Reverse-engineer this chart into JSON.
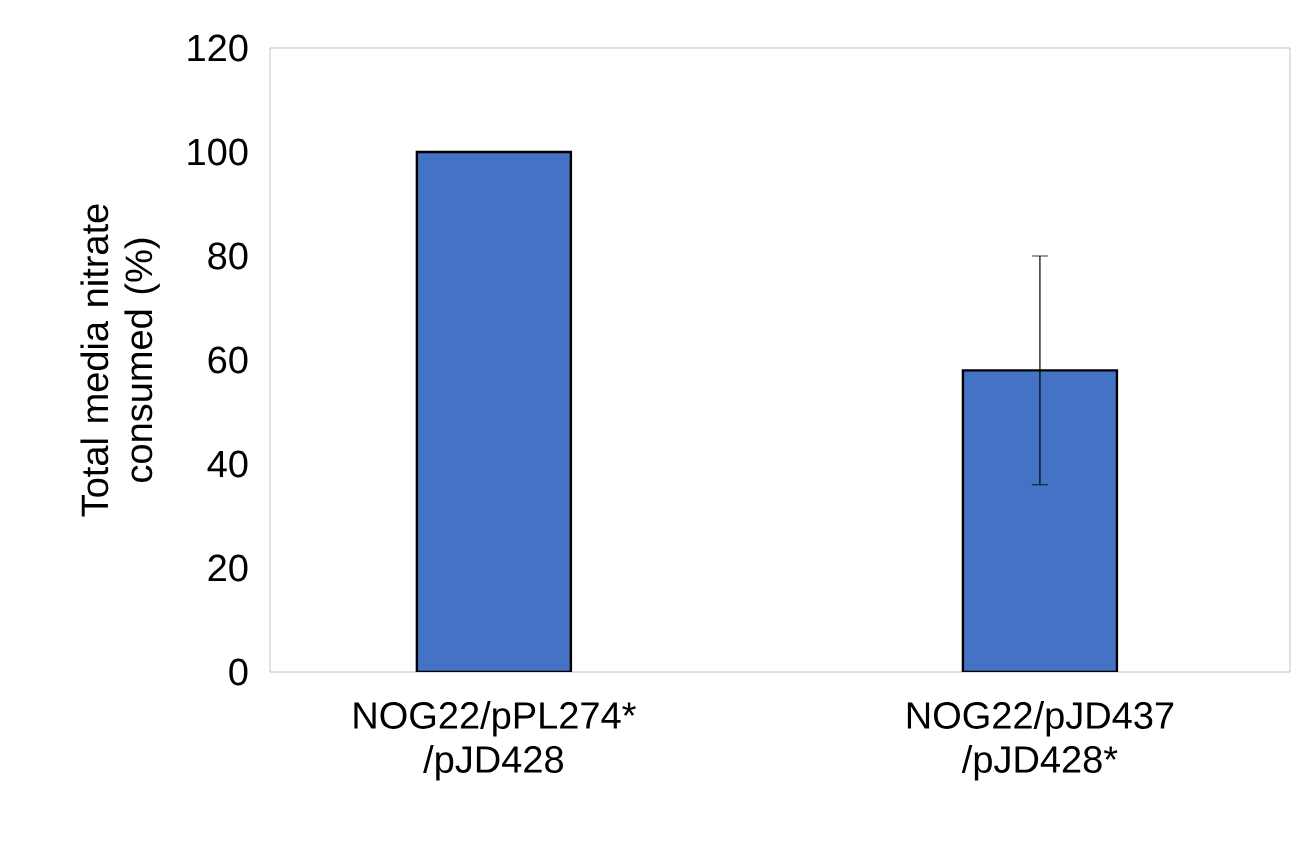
{
  "chart_data": {
    "type": "bar",
    "ylabel": "Total media nitrate consumed (%)",
    "categories": [
      "NOG22/pPL274* /pJD428",
      "NOG22/pJD437 /pJD428*"
    ],
    "values": [
      100,
      58
    ],
    "errors": [
      null,
      22
    ],
    "color": "#4472c4",
    "ylim": [
      0,
      120
    ],
    "yticks": [
      0,
      20,
      40,
      60,
      80,
      100,
      120
    ]
  }
}
